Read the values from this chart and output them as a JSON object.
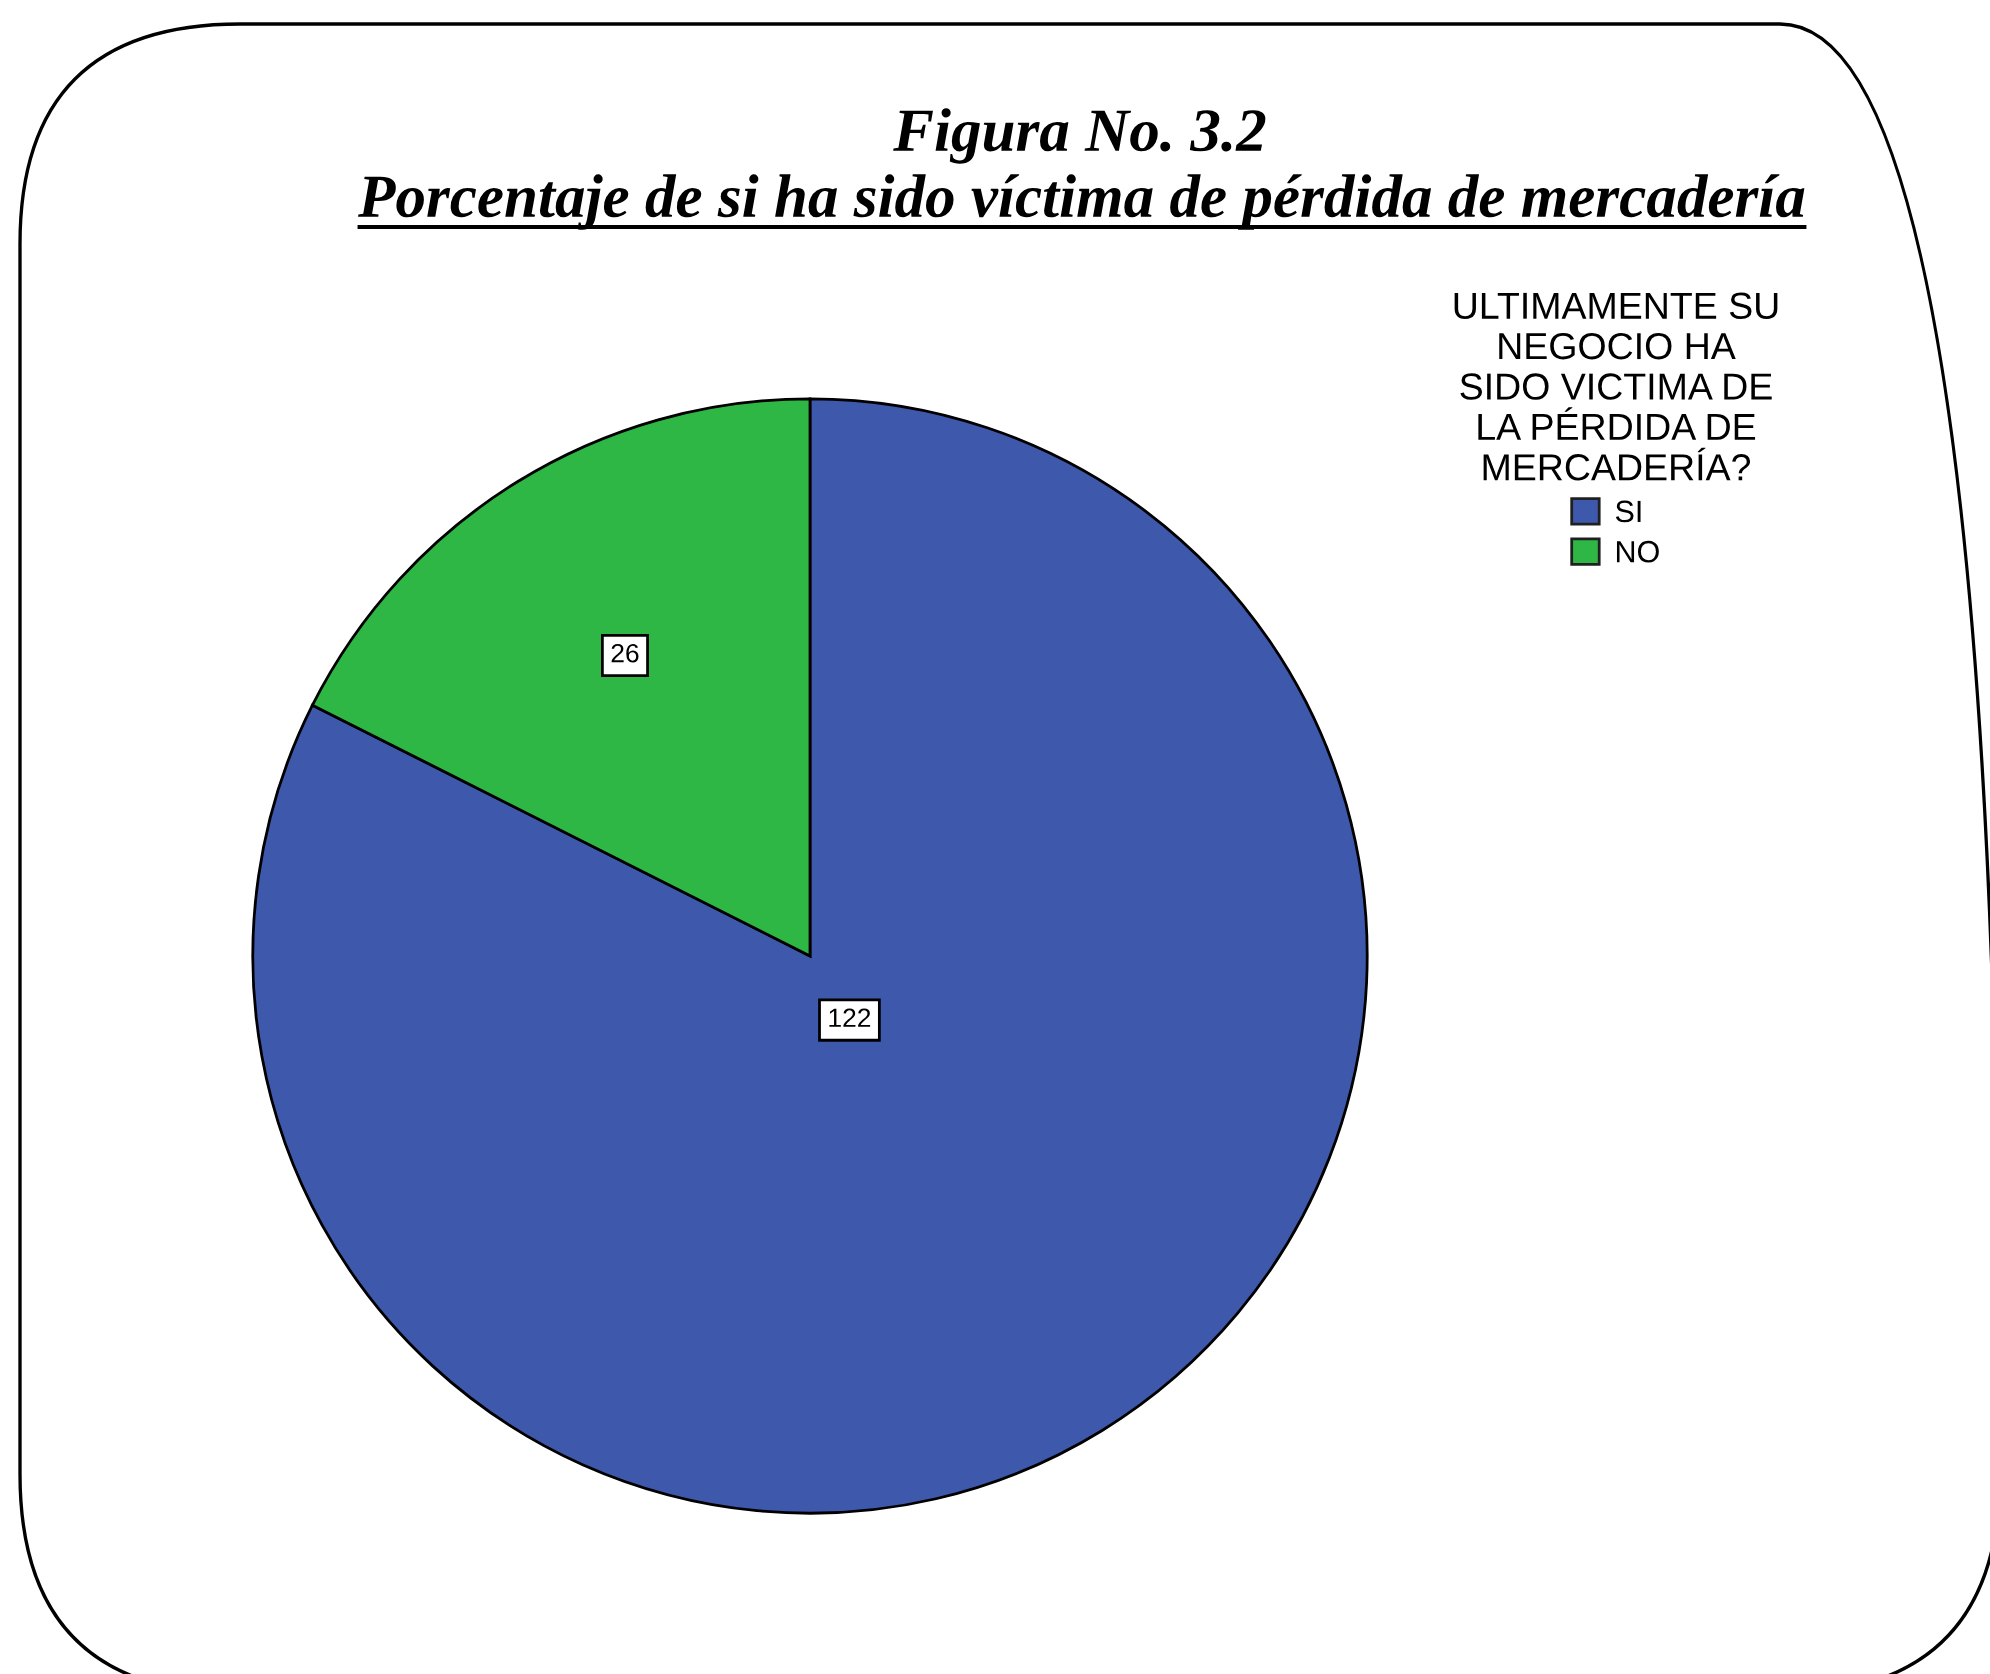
{
  "chart_data": {
    "type": "pie",
    "title": "Figura No. 3.2",
    "subtitle": "Porcentaje de si ha sido víctima de pérdida de mercadería",
    "legend_title": "ULTIMAMENTE SU\nNEGOCIO HA\nSIDO VICTIMA DE\nLA PÉRDIDA DE\nMERCADERÍA?",
    "categories": [
      "SI",
      "NO"
    ],
    "values": [
      122,
      26
    ],
    "colors": [
      "#3e58ac",
      "#2eb745"
    ],
    "data_labels": true,
    "legend": "top right"
  }
}
